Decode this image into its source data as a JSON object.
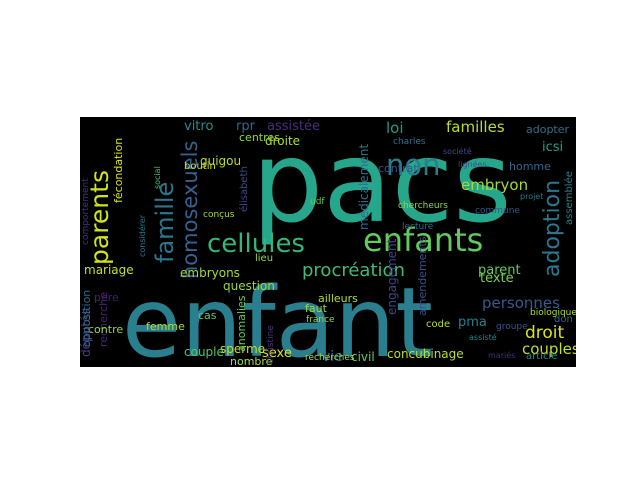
{
  "figure": {
    "background": "#ffffff",
    "cloud_background": "#000000"
  },
  "words": [
    {
      "text": "pacs",
      "color": "#26a68b"
    },
    {
      "text": "enfant",
      "color": "#2a7f8e"
    },
    {
      "text": "enfants",
      "color": "#62cb5c"
    },
    {
      "text": "cellules",
      "color": "#35b679"
    },
    {
      "text": "parents",
      "color": "#d2e21b"
    },
    {
      "text": "famille",
      "color": "#2b758e"
    },
    {
      "text": "homosexuels",
      "color": "#33628d"
    },
    {
      "text": "adoption",
      "color": "#2a788e"
    },
    {
      "text": "non",
      "color": "#277f8e"
    },
    {
      "text": "procréation",
      "color": "#3fbc73"
    },
    {
      "text": "familles",
      "color": "#b8de29"
    },
    {
      "text": "loi",
      "color": "#1f9a8a"
    },
    {
      "text": "embryon",
      "color": "#a2da37"
    },
    {
      "text": "personnes",
      "color": "#38588c"
    },
    {
      "text": "droit",
      "color": "#dde318"
    },
    {
      "text": "couples",
      "color": "#c0df25"
    },
    {
      "text": "pma",
      "color": "#26828e"
    },
    {
      "text": "texte",
      "color": "#7ad151"
    },
    {
      "text": "parent",
      "color": "#65cb5e"
    },
    {
      "text": "mariage",
      "color": "#c5e021"
    },
    {
      "text": "embryons",
      "color": "#a0da39"
    },
    {
      "text": "vitro",
      "color": "#218f8d"
    },
    {
      "text": "rpr",
      "color": "#31668e"
    },
    {
      "text": "assistée",
      "color": "#472d7b"
    },
    {
      "text": "adopter",
      "color": "#2d708e"
    },
    {
      "text": "icsi",
      "color": "#1fa188"
    },
    {
      "text": "question",
      "color": "#9bd93c"
    },
    {
      "text": "sexe",
      "color": "#d5e21a"
    },
    {
      "text": "vie",
      "color": "#2c728e"
    },
    {
      "text": "civil",
      "color": "#5ec962"
    },
    {
      "text": "concubinage",
      "color": "#bddf26"
    },
    {
      "text": "couple",
      "color": "#52c569"
    },
    {
      "text": "sperme",
      "color": "#c2df23"
    },
    {
      "text": "députés",
      "color": "#433e85"
    },
    {
      "text": "médicalement",
      "color": "#2e6f8e"
    },
    {
      "text": "contrat",
      "color": "#3b528b"
    },
    {
      "text": "engagement",
      "color": "#3f4788"
    },
    {
      "text": "amendements",
      "color": "#3d4e8a"
    },
    {
      "text": "droite",
      "color": "#addc30"
    },
    {
      "text": "centres",
      "color": "#8fd744"
    },
    {
      "text": "guigou",
      "color": "#b5de2b"
    },
    {
      "text": "fécondation",
      "color": "#d8e219"
    },
    {
      "text": "recherche",
      "color": "#482475"
    },
    {
      "text": "contre",
      "color": "#9bd93c"
    },
    {
      "text": "femme",
      "color": "#b0dd2f"
    },
    {
      "text": "cas",
      "color": "#5ec962"
    },
    {
      "text": "anomalies",
      "color": "#65cb5e"
    },
    {
      "text": "nombre",
      "color": "#a8db34"
    },
    {
      "text": "faut",
      "color": "#9dd93b"
    },
    {
      "text": "ailleurs",
      "color": "#b2dd2d"
    },
    {
      "text": "élisabeth",
      "color": "#3e4989"
    },
    {
      "text": "homme",
      "color": "#31688e"
    },
    {
      "text": "code",
      "color": "#b5de2b"
    },
    {
      "text": "don",
      "color": "#355f8d"
    },
    {
      "text": "article",
      "color": "#238a8d"
    },
    {
      "text": "assemblée",
      "color": "#25848e"
    },
    {
      "text": "france",
      "color": "#95d840"
    },
    {
      "text": "chercheurs",
      "color": "#8bd646"
    },
    {
      "text": "opposition",
      "color": "#2f6c8e"
    },
    {
      "text": "père",
      "color": "#481f70"
    },
    {
      "text": "commune",
      "color": "#3a548c"
    },
    {
      "text": "biologique",
      "color": "#a5db36"
    },
    {
      "text": "groupe",
      "color": "#3b528b"
    },
    {
      "text": "mariés",
      "color": "#472f7d"
    },
    {
      "text": "lecture",
      "color": "#31688e"
    },
    {
      "text": "lieu",
      "color": "#95d840"
    },
    {
      "text": "boutin",
      "color": "#d0e11c"
    },
    {
      "text": "projet",
      "color": "#2a768e"
    },
    {
      "text": "société",
      "color": "#3d4d8a"
    },
    {
      "text": "comportement",
      "color": "#46317e"
    },
    {
      "text": "considérer",
      "color": "#2a788e"
    },
    {
      "text": "udf",
      "color": "#5ec962"
    },
    {
      "text": "recherches",
      "color": "#a0da39"
    },
    {
      "text": "christine",
      "color": "#453781"
    },
    {
      "text": "lignées",
      "color": "#3b528b"
    },
    {
      "text": "social",
      "color": "#4ac16d"
    },
    {
      "text": "conçus",
      "color": "#a8db34"
    },
    {
      "text": "charles",
      "color": "#2e6e8e"
    },
    {
      "text": "assisté",
      "color": "#25848e"
    }
  ]
}
